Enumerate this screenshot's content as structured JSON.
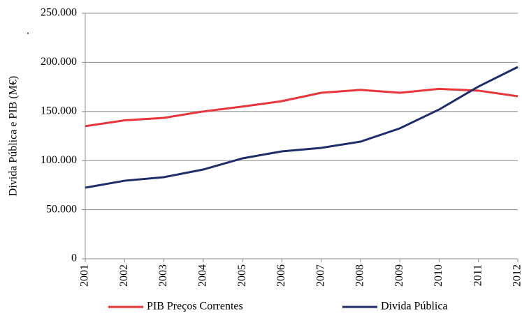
{
  "chart_data": {
    "type": "line",
    "annotation": ".",
    "y_label": "Divida Pública e PIB (M€)",
    "x": [
      2001,
      2002,
      2003,
      2004,
      2005,
      2006,
      2007,
      2008,
      2009,
      2010,
      2011,
      2012
    ],
    "xlim": [
      2001,
      2012
    ],
    "xticks": [
      2001,
      2002,
      2003,
      2004,
      2005,
      2006,
      2007,
      2008,
      2009,
      2010,
      2011,
      2012
    ],
    "ylim": [
      0,
      250000
    ],
    "yticks": [
      0,
      {
        "value": 50000,
        "label": "50.000"
      },
      {
        "value": 100000,
        "label": "100.000"
      },
      {
        "value": 150000,
        "label": "150.000"
      },
      {
        "value": 200000,
        "label": "200.000"
      },
      {
        "value": 250000,
        "label": "250.000"
      }
    ],
    "grid": true,
    "legend": "bottom",
    "series": [
      {
        "name": "PIB Preços Correntes",
        "color": "#e8353b",
        "values": [
          135000,
          141000,
          143500,
          150000,
          155000,
          160500,
          169000,
          172000,
          169000,
          173000,
          171200,
          165500
        ]
      },
      {
        "name": "Divida Pública",
        "color": "#1f2d6b",
        "values": [
          72400,
          79500,
          83100,
          90900,
          102300,
          109400,
          112900,
          119300,
          132800,
          152000,
          175400,
          195300
        ]
      }
    ]
  }
}
